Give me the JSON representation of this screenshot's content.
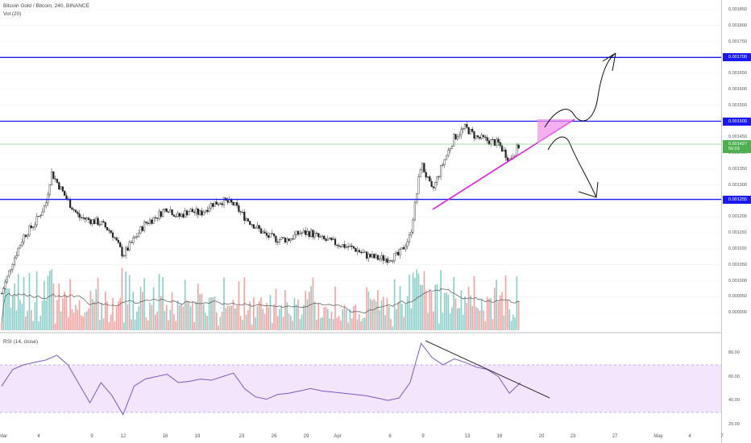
{
  "header": {
    "symbol_line": "Bitcoin Gold / Bitcoin, 240, BINANCE",
    "volume_label": "Vol (20)",
    "rsi_label": "RSI (14, close)"
  },
  "colors": {
    "up": "#26a69a",
    "down": "#ef5350",
    "level": "#1a1af0",
    "trendline": "#e020e0",
    "current_price": "#4caf50",
    "rsi_line": "#7e57c2",
    "rsi_band": "#f3e5fb"
  },
  "price_axis": {
    "ticks": [
      "0.001850",
      "0.001800",
      "0.001750",
      "0.001700",
      "0.001650",
      "0.001600",
      "0.001550",
      "0.001500",
      "0.001450",
      "0.001400",
      "0.001350",
      "0.001300",
      "0.001250",
      "0.001200",
      "0.001150",
      "0.001100",
      "0.001050",
      "0.001000",
      "0.000950",
      "0.000900"
    ],
    "tags": [
      {
        "text": "0.001700",
        "price": 0.0017,
        "color": "#1a1af0"
      },
      {
        "text": "0.001500",
        "price": 0.0015,
        "color": "#1a1af0"
      },
      {
        "text": "0.001427",
        "price": 0.001427,
        "color": "#4caf50"
      },
      {
        "text": "56:03",
        "price": 0.001412,
        "color": "#4caf50"
      },
      {
        "text": "0.001255",
        "price": 0.001255,
        "color": "#1a1af0"
      }
    ]
  },
  "rsi_axis": {
    "ticks": [
      "80.00",
      "60.00",
      "40.00",
      "20.00"
    ]
  },
  "time_axis": {
    "labels": [
      "Mar",
      "4",
      "9",
      "12",
      "16",
      "19",
      "23",
      "26",
      "29",
      "Apr",
      "6",
      "9",
      "13",
      "16",
      "20",
      "23",
      "27",
      "May",
      "4",
      "7"
    ]
  },
  "chart_data": [
    {
      "type": "candlestick",
      "title": "Bitcoin Gold / Bitcoin, 240, BINANCE",
      "ylim": [
        0.00087,
        0.00187
      ],
      "x_start": "Mar 1",
      "x_end": "May 8",
      "horizontal_levels": [
        0.0017,
        0.0015,
        0.001255
      ],
      "current_price": 0.001427,
      "close_path": [
        {
          "date": "Mar 1",
          "close": 0.00096
        },
        {
          "date": "Mar 2",
          "close": 0.00106
        },
        {
          "date": "Mar 3",
          "close": 0.00114
        },
        {
          "date": "Mar 4",
          "close": 0.00118
        },
        {
          "date": "Mar 5",
          "close": 0.00124
        },
        {
          "date": "Mar 5.5",
          "close": 0.00134
        },
        {
          "date": "Mar 6",
          "close": 0.00131
        },
        {
          "date": "Mar 7",
          "close": 0.00125
        },
        {
          "date": "Mar 8",
          "close": 0.0012
        },
        {
          "date": "Mar 9",
          "close": 0.00119
        },
        {
          "date": "Mar 10",
          "close": 0.00118
        },
        {
          "date": "Mar 11",
          "close": 0.00115
        },
        {
          "date": "Mar 12",
          "close": 0.00108
        },
        {
          "date": "Mar 13",
          "close": 0.00113
        },
        {
          "date": "Mar 14",
          "close": 0.00118
        },
        {
          "date": "Mar 15",
          "close": 0.0012
        },
        {
          "date": "Mar 16",
          "close": 0.00123
        },
        {
          "date": "Mar 17",
          "close": 0.0012
        },
        {
          "date": "Mar 18",
          "close": 0.00122
        },
        {
          "date": "Mar 19",
          "close": 0.00121
        },
        {
          "date": "Mar 20",
          "close": 0.00124
        },
        {
          "date": "Mar 21",
          "close": 0.00125
        },
        {
          "date": "Mar 22",
          "close": 0.00124
        },
        {
          "date": "Mar 23",
          "close": 0.0012
        },
        {
          "date": "Mar 24",
          "close": 0.00117
        },
        {
          "date": "Mar 25",
          "close": 0.00114
        },
        {
          "date": "Mar 26",
          "close": 0.00113
        },
        {
          "date": "Mar 27",
          "close": 0.00113
        },
        {
          "date": "Mar 28",
          "close": 0.00115
        },
        {
          "date": "Mar 29",
          "close": 0.00115
        },
        {
          "date": "Mar 30",
          "close": 0.00113
        },
        {
          "date": "Mar 31",
          "close": 0.00112
        },
        {
          "date": "Apr 1",
          "close": 0.00111
        },
        {
          "date": "Apr 2",
          "close": 0.0011
        },
        {
          "date": "Apr 3",
          "close": 0.00108
        },
        {
          "date": "Apr 4",
          "close": 0.00107
        },
        {
          "date": "Apr 5",
          "close": 0.00107
        },
        {
          "date": "Apr 6",
          "close": 0.00108
        },
        {
          "date": "Apr 7",
          "close": 0.00114
        },
        {
          "date": "Apr 7.5",
          "close": 0.00125
        },
        {
          "date": "Apr 8",
          "close": 0.00137
        },
        {
          "date": "Apr 9",
          "close": 0.00128
        },
        {
          "date": "Apr 10",
          "close": 0.00137
        },
        {
          "date": "Apr 11",
          "close": 0.00145
        },
        {
          "date": "Apr 12",
          "close": 0.00148
        },
        {
          "date": "Apr 13",
          "close": 0.00145
        },
        {
          "date": "Apr 14",
          "close": 0.00144
        },
        {
          "date": "Apr 15",
          "close": 0.00143
        },
        {
          "date": "Apr 16",
          "close": 0.00138
        },
        {
          "date": "Apr 17",
          "close": 0.00143
        }
      ]
    },
    {
      "type": "line",
      "title": "RSI (14, close)",
      "ylim": [
        15,
        95
      ],
      "band": [
        30,
        70
      ],
      "x": [
        "Mar 1",
        "Mar 2",
        "Mar 3",
        "Mar 4",
        "Mar 5",
        "Mar 6",
        "Mar 7",
        "Mar 8",
        "Mar 9",
        "Mar 10",
        "Mar 11",
        "Mar 12",
        "Mar 13",
        "Mar 14",
        "Mar 15",
        "Mar 16",
        "Mar 17",
        "Mar 18",
        "Mar 19",
        "Mar 20",
        "Mar 21",
        "Mar 22",
        "Mar 23",
        "Mar 24",
        "Mar 25",
        "Mar 26",
        "Mar 27",
        "Mar 28",
        "Mar 29",
        "Mar 30",
        "Mar 31",
        "Apr 1",
        "Apr 2",
        "Apr 3",
        "Apr 4",
        "Apr 5",
        "Apr 6",
        "Apr 7",
        "Apr 8",
        "Apr 9",
        "Apr 10",
        "Apr 11",
        "Apr 12",
        "Apr 13",
        "Apr 14",
        "Apr 15",
        "Apr 16",
        "Apr 17"
      ],
      "values": [
        52,
        66,
        70,
        72,
        74,
        78,
        70,
        54,
        38,
        55,
        44,
        28,
        52,
        58,
        60,
        62,
        55,
        56,
        58,
        57,
        60,
        63,
        50,
        43,
        41,
        45,
        46,
        48,
        50,
        48,
        47,
        46,
        45,
        44,
        42,
        40,
        42,
        55,
        88,
        76,
        70,
        75,
        72,
        68,
        66,
        60,
        46,
        55
      ]
    }
  ]
}
